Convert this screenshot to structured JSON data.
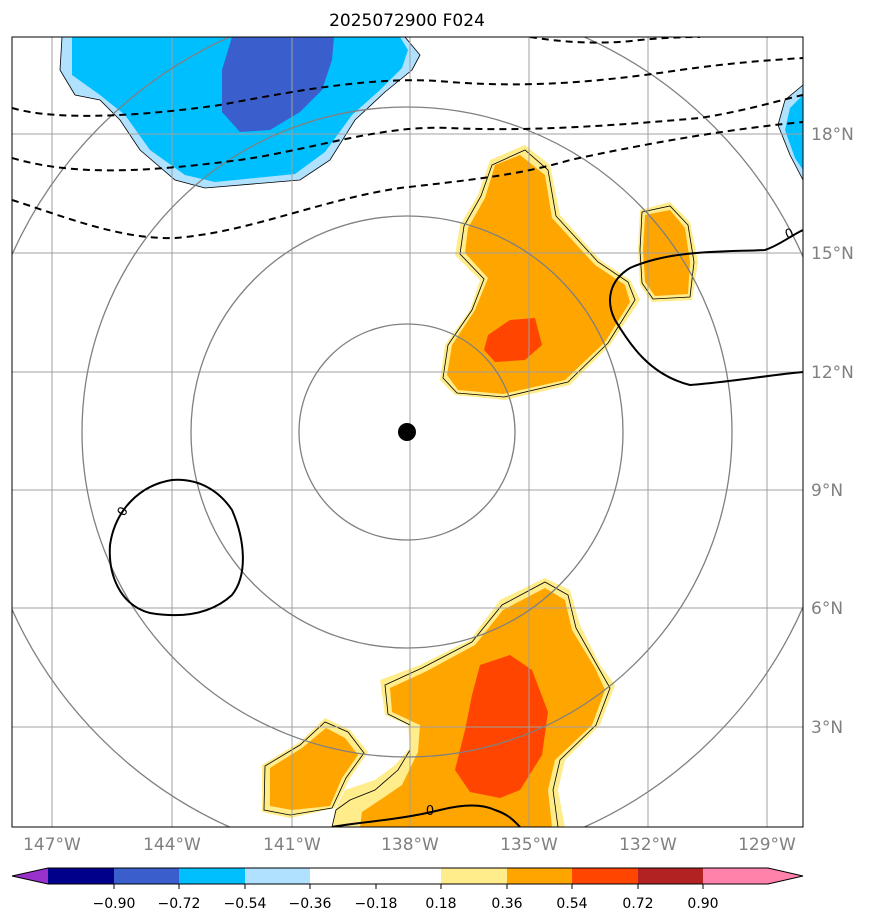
{
  "title": "2025072900 F024",
  "latitude_labels": [
    "18°N",
    "15°N",
    "12°N",
    "9°N",
    "6°N",
    "3°N"
  ],
  "longitude_labels": [
    "147°W",
    "144°W",
    "141°W",
    "138°W",
    "135°W",
    "132°W",
    "129°W"
  ],
  "contour_labels": [
    "0",
    "0",
    "0"
  ],
  "colorbar": {
    "tick_labels": [
      "−0.90",
      "−0.72",
      "−0.54",
      "−0.36",
      "−0.18",
      "0.18",
      "0.36",
      "0.54",
      "0.72",
      "0.90"
    ],
    "colors": [
      "#9932cc",
      "#00008b",
      "#3a5fcd",
      "#00bfff",
      "#b0e2ff",
      "#ffffff",
      "#ffec8b",
      "#ffa500",
      "#ff4500",
      "#b22222",
      "#ff82ab"
    ]
  },
  "colors": {
    "negative_fill_strong": "#3a5fcd",
    "negative_fill": "#00bfff",
    "negative_fill_light": "#b0e2ff",
    "positive_fill_light": "#ffec8b",
    "positive_fill": "#ffa500",
    "positive_fill_strong": "#ff4500",
    "grid": "#a0a0a0",
    "range_rings": "#808080",
    "center_marker": "#000000"
  }
}
